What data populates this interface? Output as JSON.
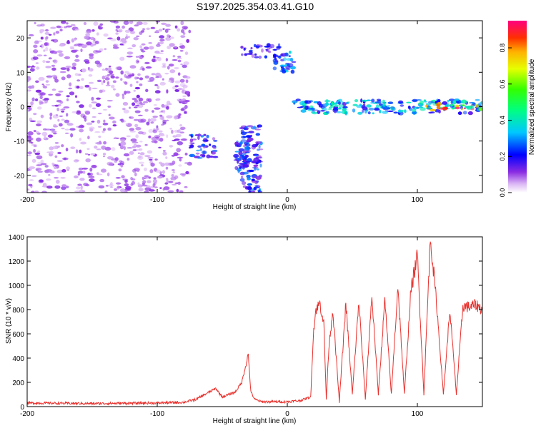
{
  "title": "S197.2025.354.03.41.G10",
  "chart_data": [
    {
      "type": "heatmap",
      "xlabel": "Height of straight line (km)",
      "ylabel": "Frequency (Hz)",
      "xlim": [
        -200,
        150
      ],
      "ylim": [
        -25,
        25
      ],
      "xticks": [
        -200,
        -100,
        0,
        100
      ],
      "yticks": [
        -20,
        -10,
        0,
        10,
        20
      ],
      "colorbar": {
        "label": "Normalized spectral amplitude",
        "range": [
          0,
          0.95
        ],
        "ticks": [
          0.0,
          0.2,
          0.4,
          0.6,
          0.8
        ],
        "colormap": "rainbow (white-purple-blue-cyan-green-yellow-red)"
      },
      "features": [
        {
          "x": [
            -200,
            -75
          ],
          "y": [
            -25,
            25
          ],
          "level": 0.1
        },
        {
          "x": [
            -75,
            -55
          ],
          "y": [
            -15,
            -8
          ],
          "level": 0.25
        },
        {
          "x": [
            -40,
            -30
          ],
          "y": [
            -20,
            -10
          ],
          "level": 0.25
        },
        {
          "x": [
            -35,
            -20
          ],
          "y": [
            -25,
            -5
          ],
          "level": 0.25
        },
        {
          "x": [
            -35,
            -5
          ],
          "y": [
            14,
            18
          ],
          "level": 0.2
        },
        {
          "x": [
            -10,
            5
          ],
          "y": [
            10,
            16
          ],
          "level": 0.3
        },
        {
          "x": [
            5,
            150
          ],
          "y": [
            -2,
            2
          ],
          "level": 0.35
        },
        {
          "x": [
            100,
            150
          ],
          "y": [
            -1,
            1
          ],
          "level": 0.85
        }
      ]
    },
    {
      "type": "line",
      "xlabel": "Height of straight line (km)",
      "ylabel": "SNR (10 * v/v)",
      "xlim": [
        -200,
        150
      ],
      "ylim": [
        0,
        1400
      ],
      "xticks": [
        -200,
        -100,
        0,
        100
      ],
      "yticks": [
        0,
        200,
        400,
        600,
        800,
        1000,
        1200,
        1400
      ],
      "color": "#e8302c",
      "series": [
        {
          "x": [
            -200,
            -150,
            -100,
            -80,
            -70,
            -60,
            -55,
            -50,
            -40,
            -35,
            -30,
            -28,
            -25,
            -20,
            -10,
            0,
            10,
            18,
            20,
            22,
            25,
            28,
            30,
            32,
            35,
            40,
            45,
            50,
            55,
            60,
            65,
            70,
            75,
            80,
            85,
            90,
            95,
            100,
            105,
            110,
            115,
            120,
            125,
            130,
            135,
            140,
            145,
            150
          ],
          "y": [
            30,
            25,
            30,
            35,
            60,
            120,
            150,
            80,
            120,
            200,
            430,
            120,
            60,
            40,
            40,
            40,
            50,
            80,
            600,
            800,
            850,
            700,
            60,
            500,
            800,
            40,
            850,
            100,
            870,
            60,
            920,
            100,
            880,
            100,
            1000,
            100,
            950,
            1250,
            100,
            1400,
            820,
            100,
            800,
            100,
            830,
            820,
            840,
            800
          ]
        }
      ]
    }
  ]
}
